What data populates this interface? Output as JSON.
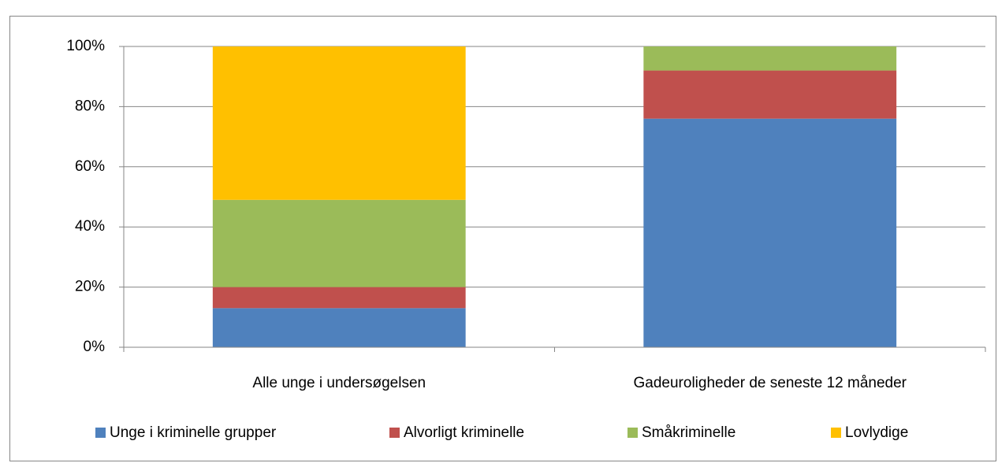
{
  "chart_data": {
    "type": "stacked_bar",
    "categories": [
      "Alle unge i undersøgelsen",
      "Gadeuroligheder de seneste 12 måneder"
    ],
    "series": [
      {
        "name": "Unge i kriminelle grupper",
        "color": "#4f81bd",
        "values": [
          13,
          76
        ]
      },
      {
        "name": "Alvorligt kriminelle",
        "color": "#c0504d",
        "values": [
          7,
          16
        ]
      },
      {
        "name": "Småkriminelle",
        "color": "#9bbb59",
        "values": [
          29,
          8
        ]
      },
      {
        "name": "Lovlydige",
        "color": "#ffc000",
        "values": [
          51,
          0
        ]
      }
    ],
    "ylim": [
      0,
      100
    ],
    "yticks": [
      {
        "value": 0,
        "label": "0%"
      },
      {
        "value": 20,
        "label": "20%"
      },
      {
        "value": 40,
        "label": "40%"
      },
      {
        "value": 60,
        "label": "60%"
      },
      {
        "value": 80,
        "label": "80%"
      },
      {
        "value": 100,
        "label": "100%"
      }
    ],
    "grid": true,
    "legend": "bottom"
  }
}
